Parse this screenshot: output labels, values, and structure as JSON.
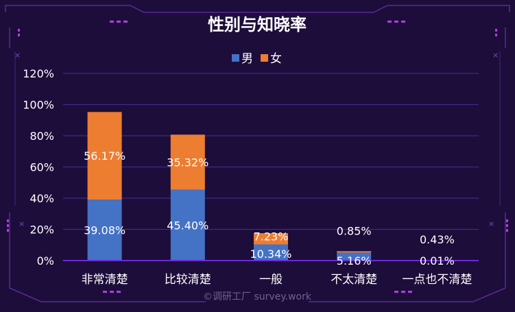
{
  "chart_data": {
    "type": "bar",
    "stacked": true,
    "title": "性别与知晓率",
    "categories": [
      "非常清楚",
      "比较清楚",
      "一般",
      "不太清楚",
      "一点也不清楚"
    ],
    "series": [
      {
        "name": "男",
        "color": "#4472c4",
        "values": [
          39.08,
          45.4,
          10.34,
          5.16,
          0.01
        ]
      },
      {
        "name": "女",
        "color": "#ed7d31",
        "values": [
          56.17,
          35.32,
          7.23,
          0.85,
          0.43
        ]
      }
    ],
    "value_labels": [
      [
        "39.08%",
        "45.40%",
        "10.34%",
        "5.16%",
        "0.01%"
      ],
      [
        "56.17%",
        "35.32%",
        "7.23%",
        "0.85%",
        "0.43%"
      ]
    ],
    "yticks": [
      "0%",
      "20%",
      "40%",
      "60%",
      "80%",
      "100%",
      "120%"
    ],
    "ylim": [
      0,
      120
    ],
    "grid": true,
    "legend_position": "top"
  },
  "watermark": "©调研工厂 survey.work",
  "colors": {
    "background": "#1d0d3a",
    "gridline": "#3f2a8a",
    "axis": "#6a2bd6",
    "frame": "#6b2bb8",
    "accent": "#b23be8"
  }
}
